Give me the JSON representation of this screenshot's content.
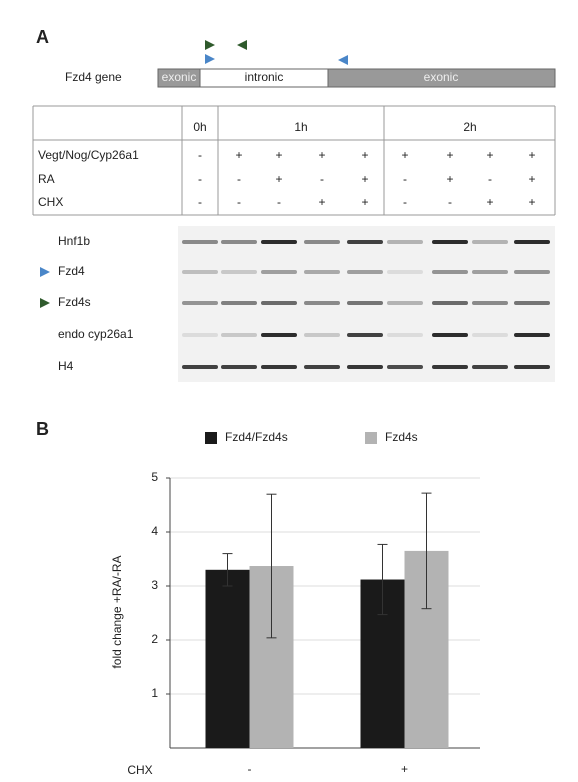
{
  "panel_labels": [
    "A",
    "B"
  ],
  "panel_a": {
    "gene_label": "Fzd4 gene",
    "segments": [
      "exonic",
      "intronic",
      "exonic"
    ],
    "header": [
      "0h",
      "1h",
      "2h"
    ],
    "rows": [
      {
        "label": "Vegt/Nog/Cyp26a1",
        "values": [
          "-",
          "+",
          "+",
          "+",
          "+",
          "+",
          "+",
          "+",
          "+"
        ]
      },
      {
        "label": "RA",
        "values": [
          "-",
          "-",
          "+",
          "-",
          "+",
          "-",
          "+",
          "-",
          "+"
        ]
      },
      {
        "label": "CHX",
        "values": [
          "-",
          "-",
          "-",
          "+",
          "+",
          "-",
          "-",
          "+",
          "+"
        ]
      }
    ],
    "gel_rows": [
      "Hnf1b",
      "Fzd4",
      "Fzd4s",
      "endo cyp26a1",
      "H4"
    ]
  },
  "chart_data": {
    "type": "bar",
    "y_label": "fold change +RA/-RA",
    "x_label": "CHX",
    "categories": [
      "-",
      "+"
    ],
    "series": [
      {
        "name": "Fzd4/Fzd4s",
        "color": "#1a1a1a",
        "values": [
          3.3,
          3.12
        ],
        "errors": [
          0.3,
          0.65
        ]
      },
      {
        "name": "Fzd4s",
        "color": "#b3b3b3",
        "values": [
          3.37,
          3.65
        ],
        "errors": [
          1.33,
          1.07
        ]
      }
    ],
    "ylim": [
      0,
      5
    ],
    "yticks": [
      1,
      2,
      3,
      4,
      5
    ],
    "grid": true
  }
}
